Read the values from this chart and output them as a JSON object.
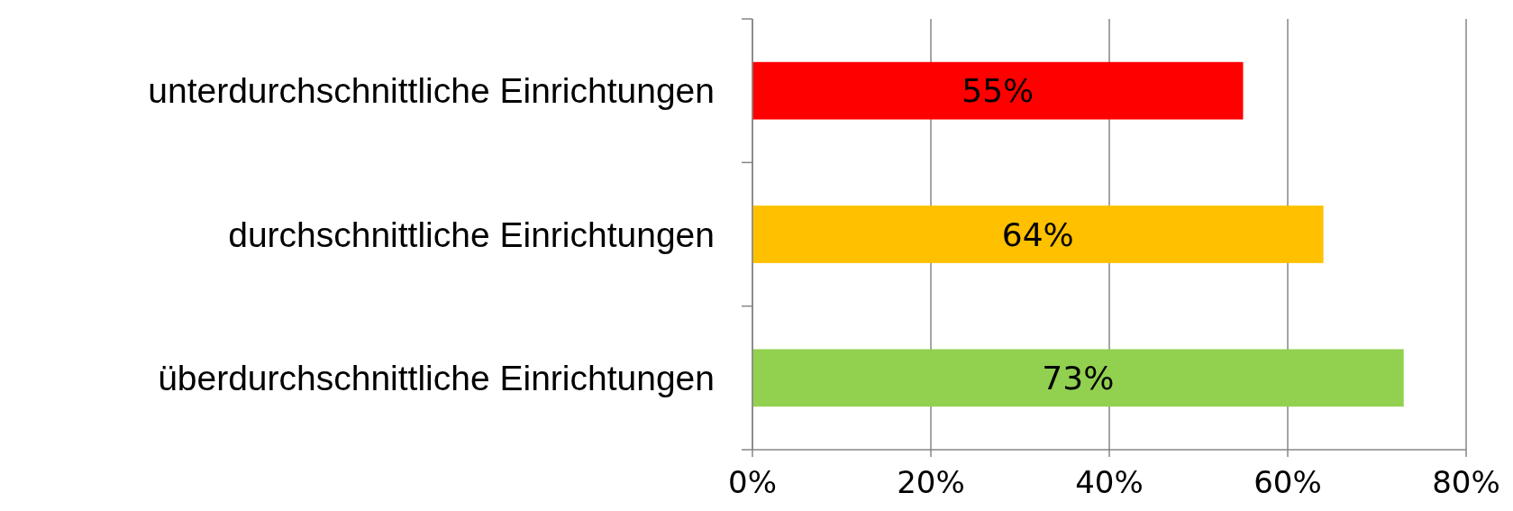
{
  "chart_data": {
    "type": "bar",
    "orientation": "horizontal",
    "categories": [
      "unterdurchschnittliche Einrichtungen",
      "durchschnittliche Einrichtungen",
      "überdurchschnittliche Einrichtungen"
    ],
    "values": [
      55,
      64,
      73
    ],
    "colors": [
      "#ff0000",
      "#ffc000",
      "#92d050"
    ],
    "value_labels": [
      "55%",
      "64%",
      "73%"
    ],
    "xlim": [
      0,
      80
    ],
    "xticks": [
      {
        "value": 0,
        "label": "0%"
      },
      {
        "value": 20,
        "label": "20%"
      },
      {
        "value": 40,
        "label": "40%"
      },
      {
        "value": 60,
        "label": "60%"
      },
      {
        "value": 80,
        "label": "80%"
      }
    ],
    "grid": "x"
  }
}
